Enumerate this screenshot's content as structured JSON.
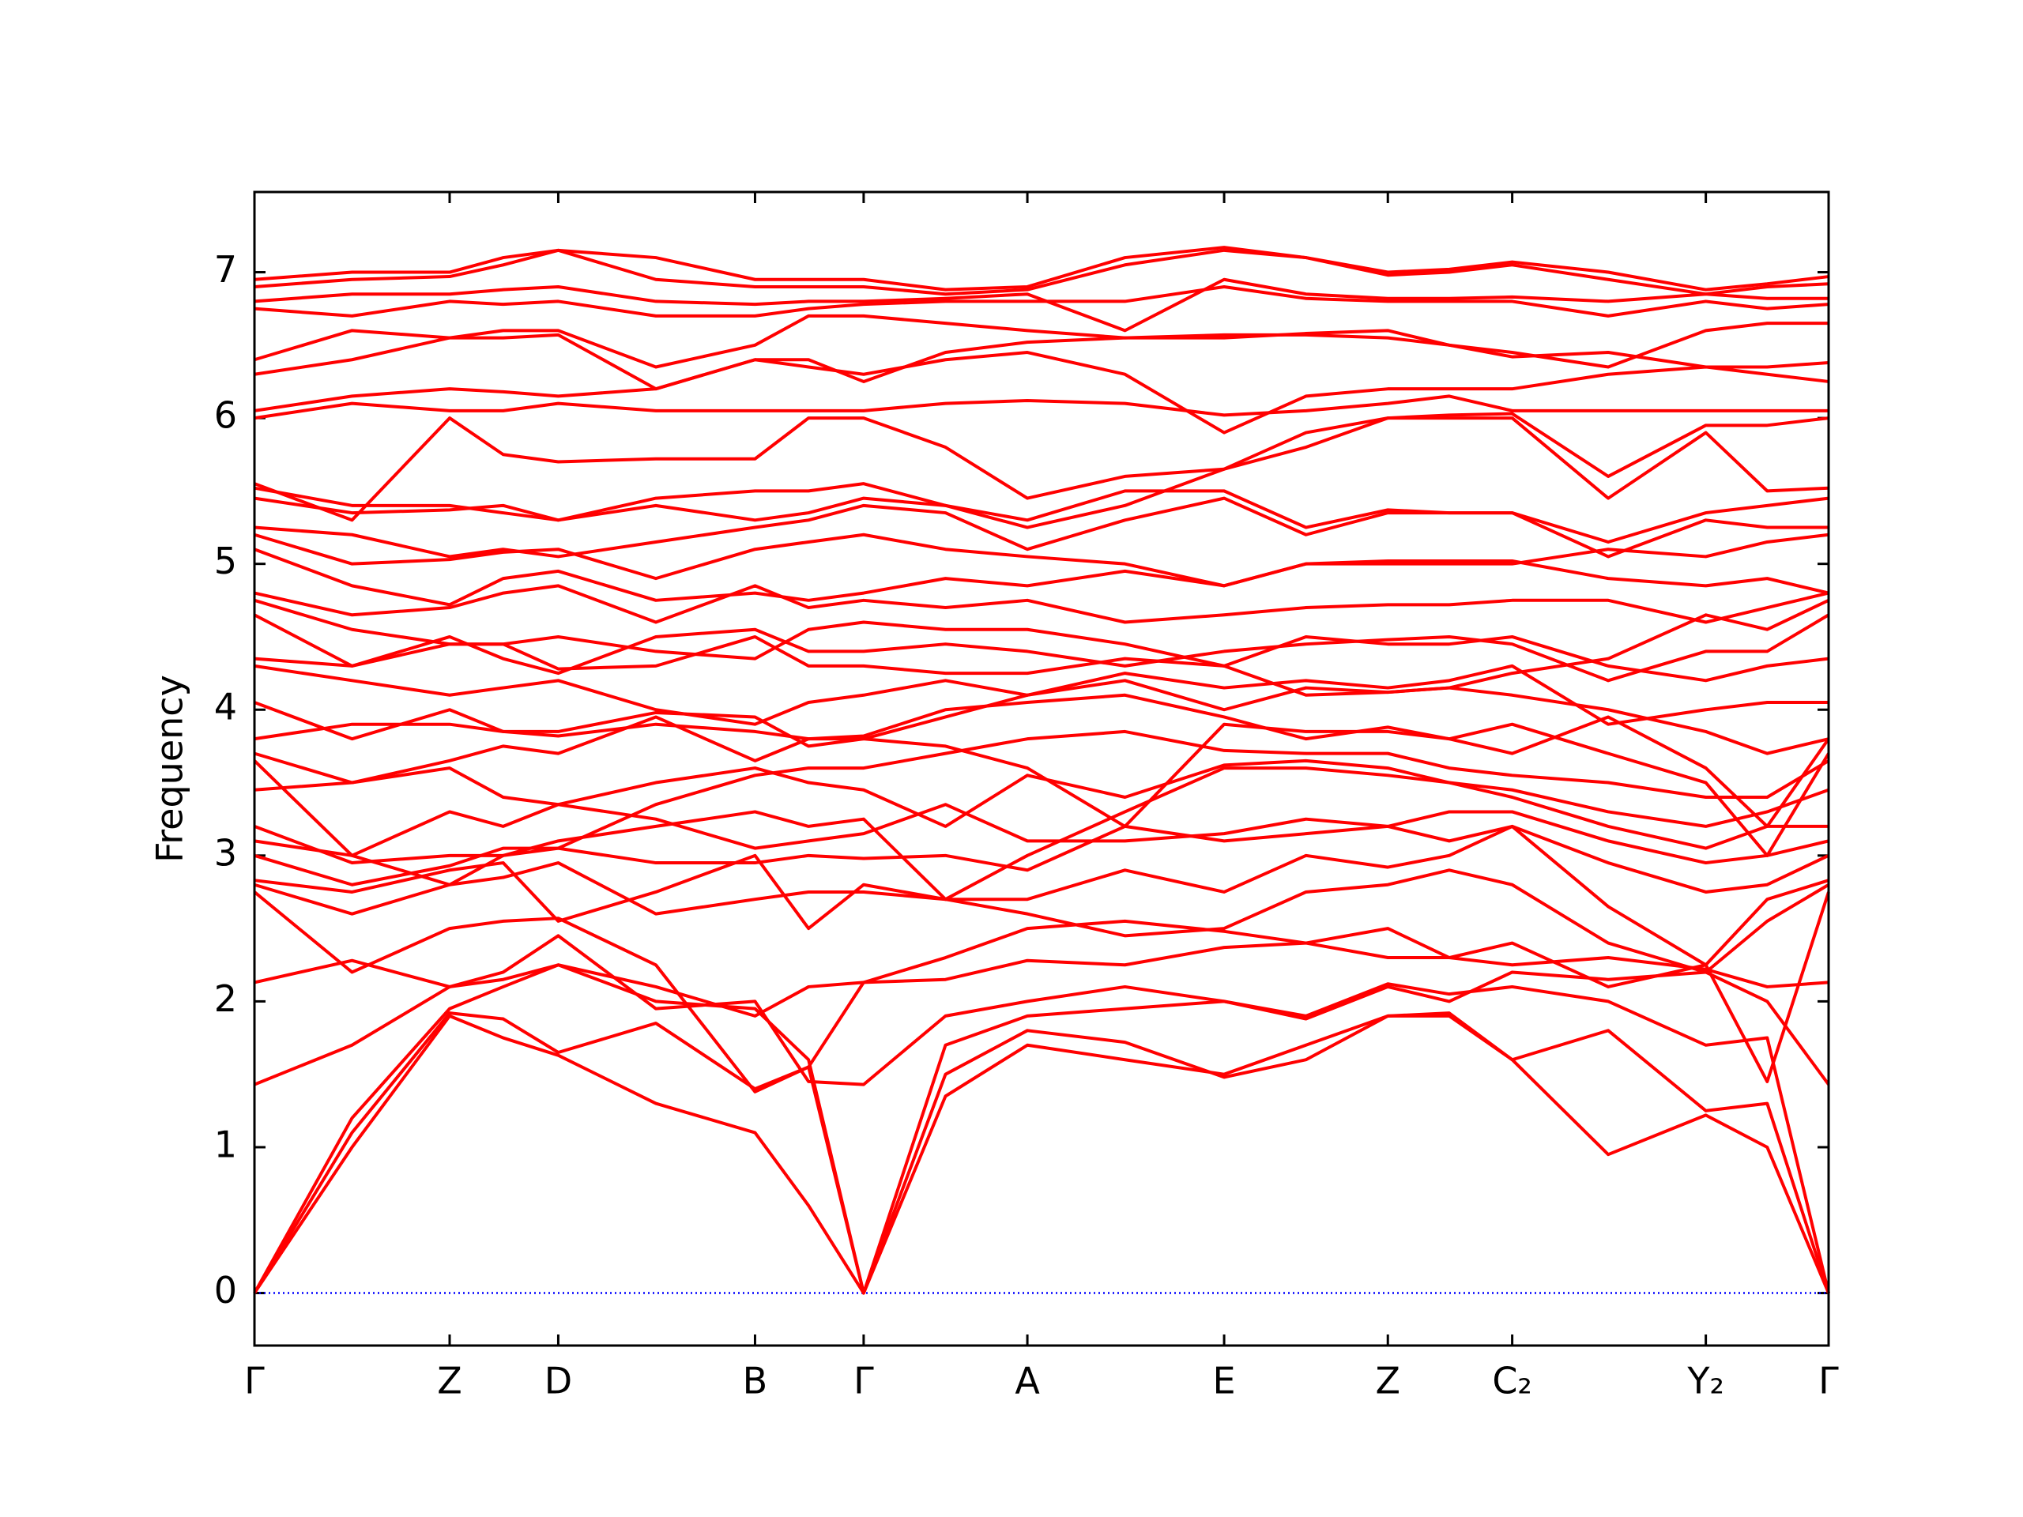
{
  "chart_data": {
    "type": "line",
    "ylabel": "Frequency",
    "color": "#ff0000",
    "zero_line": {
      "value": 0,
      "color": "#0000ff"
    },
    "xlim": [
      0,
      1
    ],
    "ylim": [
      -0.36,
      7.55
    ],
    "xticks": [
      {
        "value": 0,
        "label": "Γ"
      },
      {
        "value": 0.124,
        "label": "Z"
      },
      {
        "value": 0.193,
        "label": "D"
      },
      {
        "value": 0.318,
        "label": "B"
      },
      {
        "value": 0.387,
        "label": "Γ"
      },
      {
        "value": 0.491,
        "label": "A"
      },
      {
        "value": 0.616,
        "label": "E"
      },
      {
        "value": 0.72,
        "label": "Z"
      },
      {
        "value": 0.799,
        "label": "C₂"
      },
      {
        "value": 0.922,
        "label": "Y₂"
      },
      {
        "value": 1,
        "label": "Γ"
      }
    ],
    "yticks": [
      0,
      1,
      2,
      3,
      4,
      5,
      6,
      7
    ],
    "x": [
      0,
      0.062,
      0.124,
      0.158,
      0.193,
      0.255,
      0.318,
      0.352,
      0.387,
      0.439,
      0.491,
      0.553,
      0.616,
      0.668,
      0.72,
      0.759,
      0.799,
      0.86,
      0.922,
      0.961,
      1
    ],
    "series": [
      {
        "values": [
          0,
          1.0,
          1.9,
          1.75,
          1.63,
          1.3,
          1.1,
          0.6,
          0,
          1.35,
          1.7,
          1.6,
          1.5,
          1.7,
          1.9,
          1.92,
          1.6,
          0.95,
          1.22,
          1.0,
          0
        ]
      },
      {
        "values": [
          0,
          1.1,
          1.92,
          1.88,
          1.65,
          1.85,
          1.4,
          1.55,
          0,
          1.5,
          1.8,
          1.72,
          1.48,
          1.6,
          1.9,
          1.9,
          1.6,
          1.8,
          1.25,
          1.3,
          0
        ]
      },
      {
        "values": [
          0,
          1.2,
          1.95,
          2.1,
          2.25,
          2.0,
          1.95,
          1.6,
          0,
          1.7,
          1.9,
          1.95,
          2.0,
          1.9,
          2.12,
          2.05,
          2.1,
          2.0,
          1.7,
          1.75,
          0
        ]
      },
      {
        "values": [
          1.43,
          1.7,
          2.1,
          2.2,
          2.45,
          1.95,
          2.0,
          1.45,
          1.43,
          1.9,
          2.0,
          2.1,
          2.0,
          1.88,
          2.1,
          2.0,
          2.2,
          2.15,
          2.2,
          2.0,
          1.43
        ]
      },
      {
        "values": [
          2.13,
          2.28,
          2.1,
          2.15,
          2.25,
          2.1,
          1.9,
          2.1,
          2.13,
          2.15,
          2.28,
          2.25,
          2.37,
          2.4,
          2.5,
          2.3,
          2.25,
          2.3,
          2.22,
          2.1,
          2.13
        ]
      },
      {
        "values": [
          2.75,
          2.2,
          2.5,
          2.55,
          2.57,
          2.25,
          1.38,
          1.55,
          2.13,
          2.3,
          2.5,
          2.55,
          2.48,
          2.4,
          2.3,
          2.3,
          2.4,
          2.1,
          2.25,
          1.45,
          2.75
        ]
      },
      {
        "values": [
          2.8,
          2.6,
          2.8,
          2.85,
          2.95,
          2.6,
          2.7,
          2.75,
          2.75,
          2.7,
          2.6,
          2.45,
          2.5,
          2.75,
          2.8,
          2.9,
          2.8,
          2.4,
          2.2,
          2.55,
          2.8
        ]
      },
      {
        "values": [
          2.83,
          2.75,
          2.9,
          2.95,
          2.55,
          2.75,
          3.0,
          2.5,
          2.8,
          2.7,
          2.7,
          2.9,
          2.75,
          3.0,
          2.92,
          3.0,
          3.2,
          2.65,
          2.25,
          2.7,
          2.83
        ]
      },
      {
        "values": [
          3.0,
          2.8,
          2.93,
          3.05,
          3.05,
          2.95,
          2.95,
          3.0,
          2.98,
          3.0,
          2.9,
          3.2,
          3.1,
          3.15,
          3.2,
          3.1,
          3.2,
          2.95,
          2.75,
          2.8,
          3.0
        ]
      },
      {
        "values": [
          3.1,
          3.0,
          3.3,
          3.2,
          3.35,
          3.25,
          3.05,
          3.1,
          3.15,
          3.35,
          3.1,
          3.1,
          3.15,
          3.25,
          3.2,
          3.3,
          3.3,
          3.1,
          2.95,
          3.0,
          3.1
        ]
      },
      {
        "values": [
          3.2,
          2.95,
          3.0,
          3.0,
          3.1,
          3.2,
          3.3,
          3.2,
          3.25,
          2.7,
          3.0,
          3.3,
          3.6,
          3.6,
          3.55,
          3.5,
          3.4,
          3.2,
          3.05,
          3.2,
          3.2
        ]
      },
      {
        "values": [
          3.45,
          3.5,
          3.6,
          3.4,
          3.35,
          3.5,
          3.6,
          3.5,
          3.45,
          3.2,
          3.55,
          3.4,
          3.62,
          3.65,
          3.6,
          3.5,
          3.45,
          3.3,
          3.2,
          3.3,
          3.45
        ]
      },
      {
        "values": [
          3.65,
          3.0,
          2.8,
          3.0,
          3.05,
          3.35,
          3.55,
          3.6,
          3.6,
          3.7,
          3.8,
          3.85,
          3.72,
          3.7,
          3.7,
          3.6,
          3.55,
          3.5,
          3.4,
          3.4,
          3.65
        ]
      },
      {
        "values": [
          3.7,
          3.5,
          3.65,
          3.75,
          3.7,
          3.95,
          3.65,
          3.8,
          3.8,
          3.75,
          3.6,
          3.2,
          3.9,
          3.85,
          3.85,
          3.8,
          3.9,
          3.7,
          3.5,
          3.0,
          3.7
        ]
      },
      {
        "values": [
          3.8,
          3.9,
          3.9,
          3.85,
          3.82,
          3.9,
          3.85,
          3.8,
          3.82,
          4.0,
          4.05,
          4.1,
          3.95,
          3.8,
          3.88,
          3.8,
          3.7,
          3.95,
          3.6,
          3.2,
          3.8
        ]
      },
      {
        "values": [
          4.05,
          3.8,
          4.0,
          3.85,
          3.85,
          3.98,
          3.95,
          3.75,
          3.8,
          3.95,
          4.1,
          4.2,
          4.0,
          4.15,
          4.12,
          4.15,
          4.1,
          4.0,
          3.85,
          3.7,
          3.8
        ]
      },
      {
        "values": [
          4.3,
          4.2,
          4.1,
          4.15,
          4.2,
          4.0,
          3.9,
          4.05,
          4.1,
          4.2,
          4.1,
          4.25,
          4.15,
          4.2,
          4.15,
          4.2,
          4.3,
          3.9,
          4.0,
          4.05,
          4.05
        ]
      },
      {
        "values": [
          4.35,
          4.3,
          4.45,
          4.45,
          4.28,
          4.3,
          4.5,
          4.3,
          4.3,
          4.25,
          4.25,
          4.35,
          4.3,
          4.5,
          4.45,
          4.45,
          4.5,
          4.3,
          4.2,
          4.3,
          4.35
        ]
      },
      {
        "values": [
          4.65,
          4.3,
          4.5,
          4.35,
          4.25,
          4.5,
          4.55,
          4.4,
          4.4,
          4.45,
          4.4,
          4.3,
          4.4,
          4.45,
          4.48,
          4.5,
          4.45,
          4.2,
          4.4,
          4.4,
          4.65
        ]
      },
      {
        "values": [
          4.75,
          4.55,
          4.45,
          4.45,
          4.5,
          4.4,
          4.35,
          4.55,
          4.6,
          4.55,
          4.55,
          4.45,
          4.3,
          4.1,
          4.12,
          4.15,
          4.25,
          4.35,
          4.65,
          4.55,
          4.75
        ]
      },
      {
        "values": [
          4.8,
          4.65,
          4.7,
          4.8,
          4.85,
          4.6,
          4.85,
          4.7,
          4.75,
          4.7,
          4.75,
          4.6,
          4.65,
          4.7,
          4.72,
          4.72,
          4.75,
          4.75,
          4.6,
          4.7,
          4.8
        ]
      },
      {
        "values": [
          5.1,
          4.85,
          4.72,
          4.9,
          4.95,
          4.75,
          4.8,
          4.75,
          4.8,
          4.9,
          4.85,
          4.95,
          4.85,
          5.0,
          5.02,
          5.02,
          5.02,
          4.9,
          4.85,
          4.9,
          4.8
        ]
      },
      {
        "values": [
          5.2,
          5.0,
          5.03,
          5.08,
          5.1,
          4.9,
          5.1,
          5.15,
          5.2,
          5.1,
          5.05,
          5.0,
          4.85,
          5.0,
          5.0,
          5.0,
          5.0,
          5.1,
          5.05,
          5.15,
          5.2
        ]
      },
      {
        "values": [
          5.25,
          5.2,
          5.05,
          5.1,
          5.05,
          5.15,
          5.25,
          5.3,
          5.4,
          5.35,
          5.1,
          5.3,
          5.45,
          5.2,
          5.35,
          5.35,
          5.35,
          5.05,
          5.3,
          5.25,
          5.25
        ]
      },
      {
        "values": [
          5.45,
          5.35,
          5.37,
          5.4,
          5.3,
          5.4,
          5.3,
          5.35,
          5.45,
          5.4,
          5.3,
          5.5,
          5.5,
          5.25,
          5.37,
          5.35,
          5.35,
          5.15,
          5.35,
          5.4,
          5.45
        ]
      },
      {
        "values": [
          5.52,
          5.4,
          5.4,
          5.35,
          5.3,
          5.45,
          5.5,
          5.5,
          5.55,
          5.4,
          5.25,
          5.4,
          5.65,
          5.8,
          6.0,
          6.0,
          6.0,
          5.45,
          5.9,
          5.5,
          5.52
        ]
      },
      {
        "values": [
          5.55,
          5.3,
          6.0,
          5.75,
          5.7,
          5.72,
          5.72,
          6.0,
          6.0,
          5.8,
          5.45,
          5.6,
          5.65,
          5.9,
          6.0,
          6.02,
          6.03,
          5.6,
          5.95,
          5.95,
          6.0
        ]
      },
      {
        "values": [
          6.0,
          6.1,
          6.05,
          6.05,
          6.1,
          6.05,
          6.05,
          6.05,
          6.05,
          6.1,
          6.12,
          6.1,
          6.02,
          6.05,
          6.1,
          6.15,
          6.05,
          6.05,
          6.05,
          6.05,
          6.05
        ]
      },
      {
        "values": [
          6.05,
          6.15,
          6.2,
          6.18,
          6.15,
          6.2,
          6.4,
          6.35,
          6.3,
          6.4,
          6.45,
          6.3,
          5.9,
          6.15,
          6.2,
          6.2,
          6.2,
          6.3,
          6.35,
          6.3,
          6.25
        ]
      },
      {
        "values": [
          6.3,
          6.4,
          6.55,
          6.55,
          6.57,
          6.2,
          6.4,
          6.4,
          6.25,
          6.45,
          6.52,
          6.55,
          6.57,
          6.57,
          6.55,
          6.5,
          6.42,
          6.45,
          6.35,
          6.35,
          6.38
        ]
      },
      {
        "values": [
          6.4,
          6.6,
          6.55,
          6.6,
          6.6,
          6.35,
          6.5,
          6.7,
          6.7,
          6.65,
          6.6,
          6.55,
          6.55,
          6.58,
          6.6,
          6.5,
          6.45,
          6.35,
          6.6,
          6.65,
          6.65
        ]
      },
      {
        "values": [
          6.75,
          6.7,
          6.8,
          6.78,
          6.8,
          6.7,
          6.7,
          6.75,
          6.78,
          6.8,
          6.8,
          6.8,
          6.9,
          6.82,
          6.8,
          6.8,
          6.8,
          6.7,
          6.8,
          6.75,
          6.78
        ]
      },
      {
        "values": [
          6.8,
          6.85,
          6.85,
          6.88,
          6.9,
          6.8,
          6.78,
          6.8,
          6.8,
          6.82,
          6.85,
          6.6,
          6.95,
          6.85,
          6.82,
          6.82,
          6.83,
          6.8,
          6.85,
          6.82,
          6.82
        ]
      },
      {
        "values": [
          6.9,
          6.95,
          6.97,
          7.05,
          7.15,
          6.95,
          6.9,
          6.9,
          6.9,
          6.85,
          6.88,
          7.05,
          7.15,
          7.1,
          6.98,
          7.0,
          7.05,
          6.95,
          6.85,
          6.9,
          6.92
        ]
      },
      {
        "values": [
          6.95,
          7.0,
          7.0,
          7.1,
          7.15,
          7.1,
          6.95,
          6.95,
          6.95,
          6.88,
          6.9,
          7.1,
          7.17,
          7.1,
          7.0,
          7.02,
          7.07,
          7.0,
          6.88,
          6.92,
          6.97
        ]
      }
    ]
  }
}
